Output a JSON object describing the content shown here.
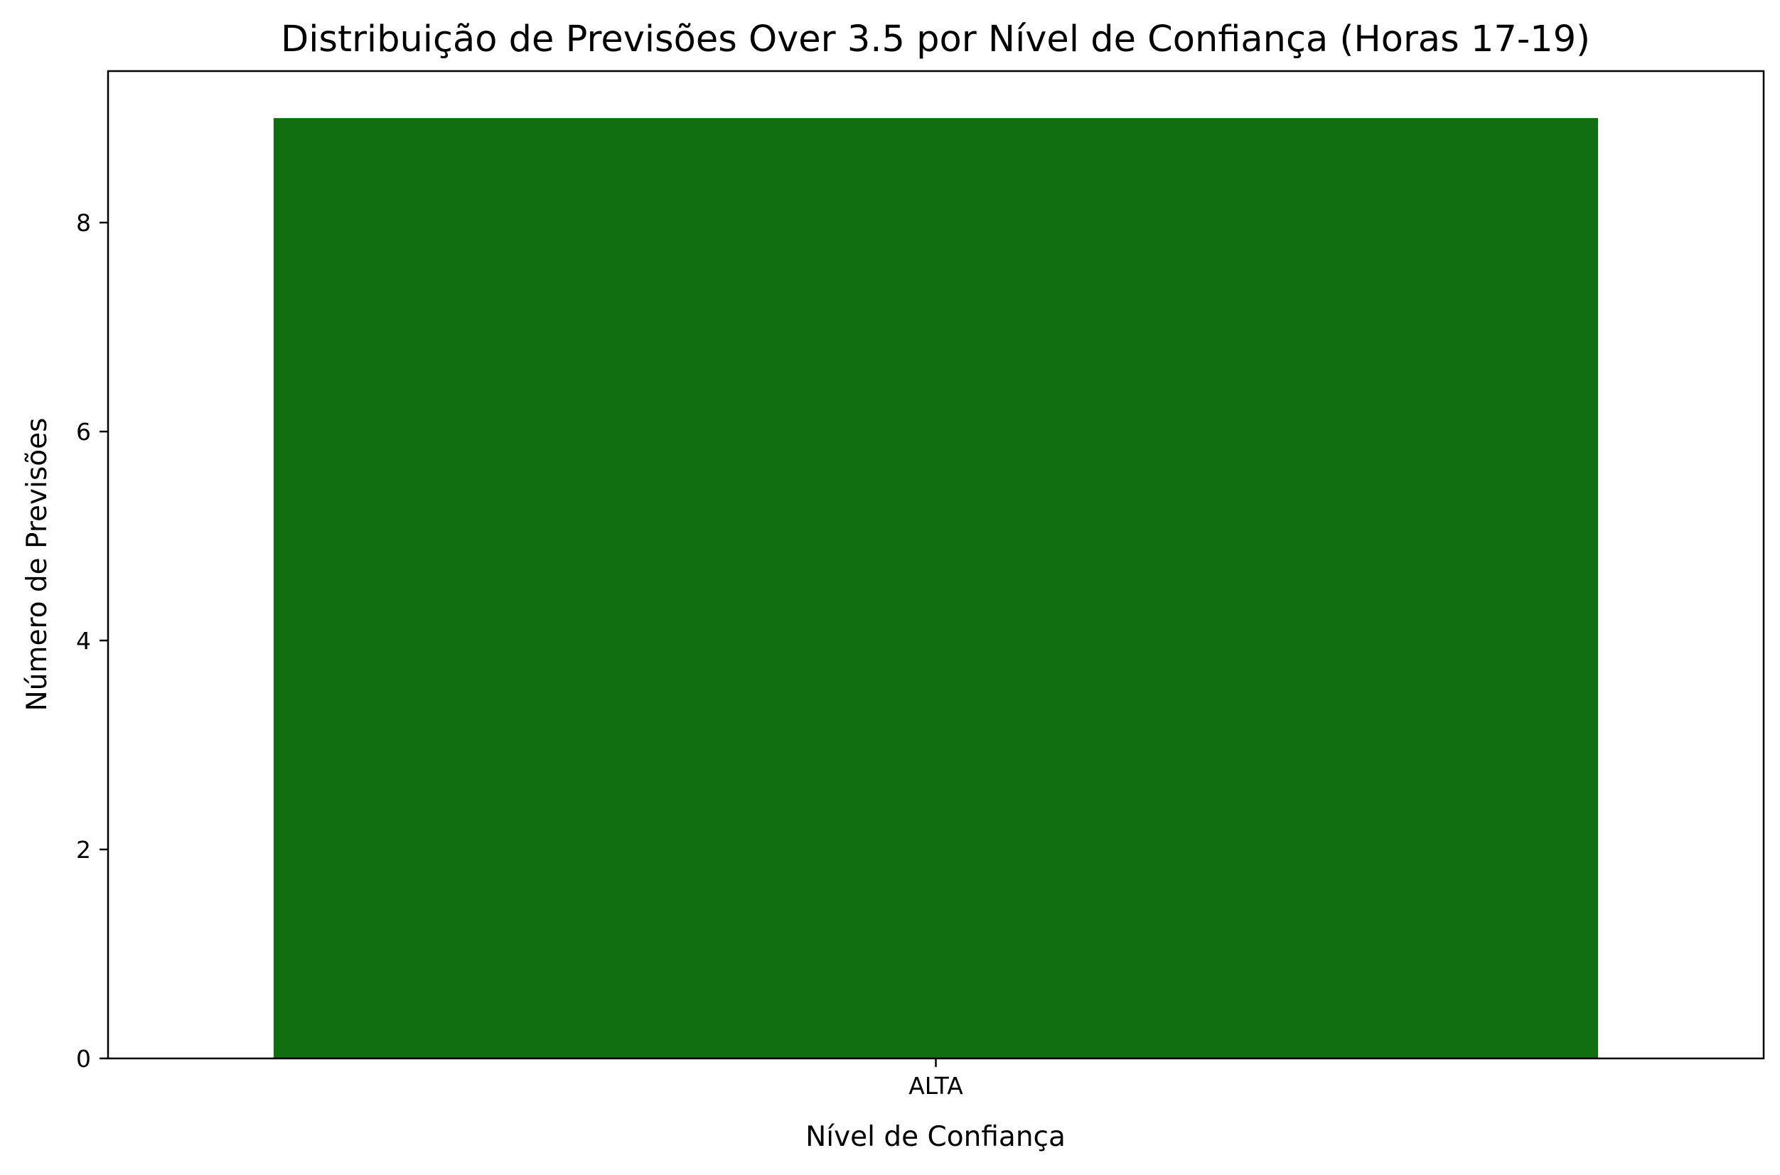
{
  "chart_data": {
    "type": "bar",
    "title": "Distribuição de Previsões Over 3.5 por Nível de Confiança (Horas 17-19)",
    "xlabel": "Nível de Confiança",
    "ylabel": "Número de Previsões",
    "categories": [
      "ALTA"
    ],
    "values": [
      9
    ],
    "ylim": [
      0,
      9.45
    ],
    "yticks": [
      0,
      2,
      4,
      6,
      8
    ],
    "grid": false,
    "bar_color": "#116f12"
  }
}
